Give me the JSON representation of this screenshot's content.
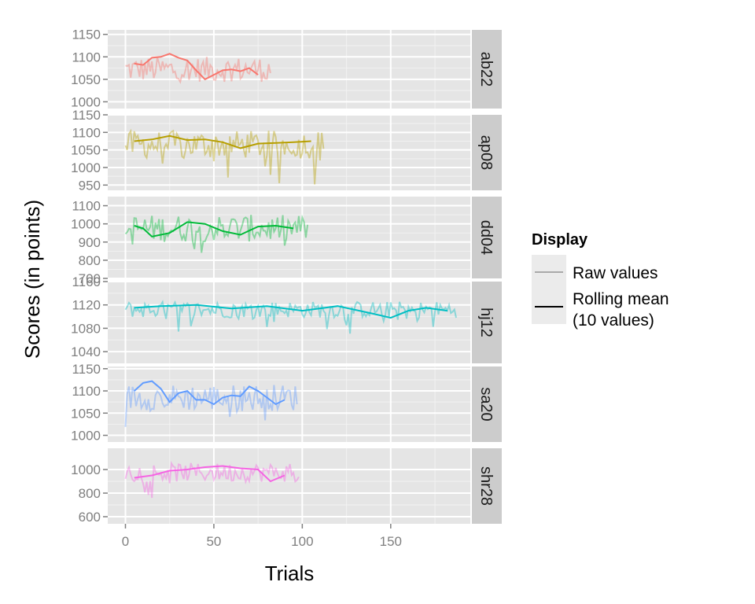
{
  "chart_data": {
    "type": "line",
    "xlabel": "Trials",
    "ylabel": "Scores (in points)",
    "x_range": [
      -10,
      195
    ],
    "x_ticks": [
      0,
      50,
      100,
      150
    ],
    "grid": true,
    "legend": {
      "title": "Display",
      "position": "right",
      "entries": [
        {
          "label": "Raw values",
          "line_color": "#aaaaaa"
        },
        {
          "label_lines": [
            "Rolling mean",
            "(10 values)"
          ],
          "line_color": "#000000"
        }
      ]
    },
    "panels": [
      {
        "id": "ab22",
        "color": "#f8766d",
        "ylim": [
          985,
          1160
        ],
        "yticks": [
          1000,
          1050,
          1100,
          1150
        ],
        "n_trials": 82,
        "raw_mean": 1072,
        "raw_spread": 28,
        "rolling": [
          [
            5,
            1085
          ],
          [
            10,
            1082
          ],
          [
            15,
            1098
          ],
          [
            20,
            1100
          ],
          [
            25,
            1107
          ],
          [
            30,
            1098
          ],
          [
            35,
            1092
          ],
          [
            40,
            1070
          ],
          [
            45,
            1050
          ],
          [
            50,
            1060
          ],
          [
            55,
            1070
          ],
          [
            60,
            1072
          ],
          [
            65,
            1068
          ],
          [
            70,
            1075
          ],
          [
            75,
            1060
          ]
        ]
      },
      {
        "id": "ap08",
        "color": "#b79f00",
        "ylim": [
          935,
          1150
        ],
        "yticks": [
          950,
          1000,
          1050,
          1100,
          1150
        ],
        "n_trials": 112,
        "raw_mean": 1065,
        "raw_spread": 40,
        "rolling": [
          [
            5,
            1075
          ],
          [
            15,
            1080
          ],
          [
            25,
            1090
          ],
          [
            35,
            1078
          ],
          [
            45,
            1080
          ],
          [
            55,
            1072
          ],
          [
            65,
            1055
          ],
          [
            75,
            1068
          ],
          [
            85,
            1070
          ],
          [
            95,
            1072
          ],
          [
            105,
            1075
          ]
        ]
      },
      {
        "id": "dd04",
        "color": "#00ba38",
        "ylim": [
          700,
          1150
        ],
        "yticks": [
          700,
          800,
          900,
          1000,
          1100
        ],
        "n_trials": 103,
        "raw_mean": 975,
        "raw_spread": 75,
        "rolling": [
          [
            5,
            990
          ],
          [
            10,
            975
          ],
          [
            15,
            930
          ],
          [
            25,
            950
          ],
          [
            35,
            1010
          ],
          [
            45,
            1000
          ],
          [
            55,
            960
          ],
          [
            65,
            940
          ],
          [
            75,
            985
          ],
          [
            85,
            990
          ],
          [
            95,
            975
          ]
        ]
      },
      {
        "id": "hj12",
        "color": "#00bfc4",
        "ylim": [
          1020,
          1160
        ],
        "yticks": [
          1040,
          1080,
          1120,
          1160
        ],
        "n_trials": 187,
        "raw_mean": 1112,
        "raw_spread": 14,
        "rolling": [
          [
            5,
            1115
          ],
          [
            20,
            1118
          ],
          [
            40,
            1120
          ],
          [
            60,
            1114
          ],
          [
            80,
            1118
          ],
          [
            100,
            1110
          ],
          [
            120,
            1118
          ],
          [
            140,
            1105
          ],
          [
            150,
            1098
          ],
          [
            160,
            1110
          ],
          [
            170,
            1115
          ],
          [
            182,
            1110
          ]
        ]
      },
      {
        "id": "sa20",
        "color": "#619cff",
        "ylim": [
          985,
          1155
        ],
        "yticks": [
          1000,
          1050,
          1100,
          1150
        ],
        "n_trials": 97,
        "raw_mean": 1085,
        "raw_spread": 30,
        "rolling": [
          [
            5,
            1100
          ],
          [
            10,
            1118
          ],
          [
            15,
            1122
          ],
          [
            20,
            1105
          ],
          [
            25,
            1075
          ],
          [
            30,
            1095
          ],
          [
            35,
            1100
          ],
          [
            40,
            1080
          ],
          [
            45,
            1080
          ],
          [
            50,
            1070
          ],
          [
            55,
            1085
          ],
          [
            60,
            1090
          ],
          [
            65,
            1088
          ],
          [
            70,
            1110
          ],
          [
            75,
            1100
          ],
          [
            80,
            1085
          ],
          [
            85,
            1070
          ],
          [
            90,
            1080
          ]
        ]
      },
      {
        "id": "shr28",
        "color": "#f564e3",
        "ylim": [
          540,
          1180
        ],
        "yticks": [
          600,
          800,
          1000
        ],
        "n_trials": 98,
        "raw_mean": 975,
        "raw_spread": 80,
        "rolling": [
          [
            5,
            930
          ],
          [
            15,
            950
          ],
          [
            25,
            990
          ],
          [
            35,
            1000
          ],
          [
            45,
            1020
          ],
          [
            55,
            1030
          ],
          [
            65,
            1010
          ],
          [
            75,
            1000
          ],
          [
            82,
            900
          ],
          [
            90,
            950
          ]
        ]
      }
    ]
  }
}
